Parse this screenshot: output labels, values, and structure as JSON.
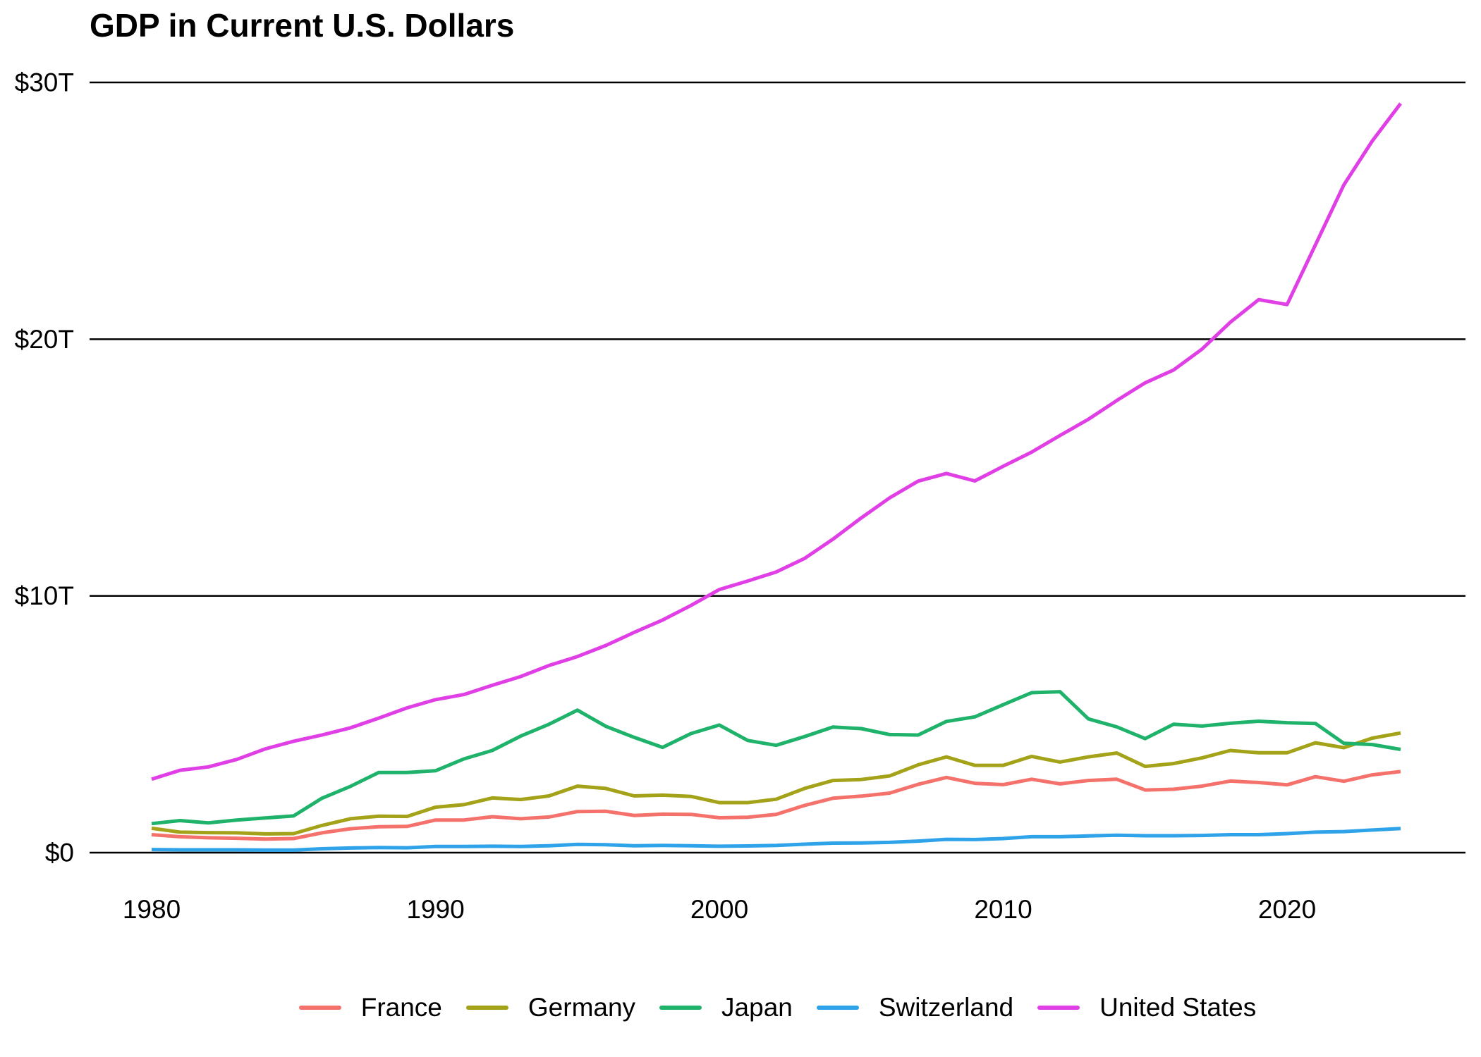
{
  "title": "GDP in Current U.S. Dollars",
  "chart_data": {
    "type": "line",
    "title": "GDP in Current U.S. Dollars",
    "units": "trillions of current U.S. dollars",
    "x_label": "",
    "y_label": "",
    "x": [
      1980,
      1981,
      1982,
      1983,
      1984,
      1985,
      1986,
      1987,
      1988,
      1989,
      1990,
      1991,
      1992,
      1993,
      1994,
      1995,
      1996,
      1997,
      1998,
      1999,
      2000,
      2001,
      2002,
      2003,
      2004,
      2005,
      2006,
      2007,
      2008,
      2009,
      2010,
      2011,
      2012,
      2013,
      2014,
      2015,
      2016,
      2017,
      2018,
      2019,
      2020,
      2021,
      2022,
      2023,
      2024
    ],
    "series": [
      {
        "name": "France",
        "color": "#F4726B",
        "values": [
          0.7,
          0.62,
          0.58,
          0.56,
          0.53,
          0.55,
          0.77,
          0.93,
          1.01,
          1.02,
          1.27,
          1.27,
          1.4,
          1.32,
          1.39,
          1.6,
          1.61,
          1.45,
          1.5,
          1.49,
          1.36,
          1.38,
          1.49,
          1.84,
          2.12,
          2.2,
          2.32,
          2.66,
          2.93,
          2.7,
          2.65,
          2.86,
          2.68,
          2.81,
          2.86,
          2.44,
          2.47,
          2.59,
          2.79,
          2.73,
          2.64,
          2.96,
          2.78,
          3.03,
          3.16
        ]
      },
      {
        "name": "Germany",
        "color": "#A3A218",
        "values": [
          0.95,
          0.8,
          0.78,
          0.77,
          0.73,
          0.74,
          1.06,
          1.32,
          1.42,
          1.41,
          1.77,
          1.87,
          2.13,
          2.07,
          2.21,
          2.59,
          2.5,
          2.21,
          2.24,
          2.19,
          1.95,
          1.95,
          2.08,
          2.5,
          2.81,
          2.85,
          2.99,
          3.42,
          3.73,
          3.4,
          3.4,
          3.75,
          3.53,
          3.73,
          3.88,
          3.36,
          3.47,
          3.69,
          3.98,
          3.89,
          3.89,
          4.28,
          4.09,
          4.46,
          4.66
        ]
      },
      {
        "name": "Japan",
        "color": "#1FB26B",
        "values": [
          1.13,
          1.25,
          1.16,
          1.27,
          1.35,
          1.43,
          2.12,
          2.58,
          3.12,
          3.12,
          3.19,
          3.65,
          3.98,
          4.54,
          5.0,
          5.55,
          4.92,
          4.49,
          4.1,
          4.64,
          4.97,
          4.37,
          4.18,
          4.52,
          4.89,
          4.83,
          4.6,
          4.58,
          5.11,
          5.29,
          5.76,
          6.23,
          6.27,
          5.21,
          4.9,
          4.44,
          5.0,
          4.93,
          5.04,
          5.12,
          5.06,
          5.03,
          4.26,
          4.21,
          4.02
        ]
      },
      {
        "name": "Switzerland",
        "color": "#2EA3E9",
        "values": [
          0.12,
          0.11,
          0.11,
          0.11,
          0.1,
          0.1,
          0.15,
          0.18,
          0.2,
          0.19,
          0.24,
          0.24,
          0.25,
          0.24,
          0.27,
          0.32,
          0.31,
          0.27,
          0.28,
          0.27,
          0.25,
          0.26,
          0.28,
          0.33,
          0.37,
          0.38,
          0.4,
          0.45,
          0.52,
          0.51,
          0.55,
          0.62,
          0.62,
          0.65,
          0.68,
          0.66,
          0.66,
          0.67,
          0.7,
          0.7,
          0.74,
          0.8,
          0.82,
          0.88,
          0.94
        ]
      },
      {
        "name": "United States",
        "color": "#E13FE6",
        "values": [
          2.86,
          3.21,
          3.34,
          3.63,
          4.04,
          4.34,
          4.58,
          4.86,
          5.24,
          5.64,
          5.96,
          6.16,
          6.52,
          6.86,
          7.29,
          7.64,
          8.07,
          8.58,
          9.06,
          9.63,
          10.25,
          10.58,
          10.93,
          11.46,
          12.21,
          13.04,
          13.82,
          14.47,
          14.77,
          14.48,
          15.05,
          15.6,
          16.25,
          16.88,
          17.61,
          18.3,
          18.8,
          19.61,
          20.66,
          21.54,
          21.35,
          23.68,
          26.01,
          27.72,
          29.18
        ]
      }
    ],
    "ylim": [
      0,
      30
    ],
    "yticks": [
      {
        "value": 0,
        "label": "$0"
      },
      {
        "value": 10,
        "label": "$10T"
      },
      {
        "value": 20,
        "label": "$20T"
      },
      {
        "value": 30,
        "label": "$30T"
      }
    ],
    "xticks": [
      {
        "value": 1980,
        "label": "1980"
      },
      {
        "value": 1990,
        "label": "1990"
      },
      {
        "value": 2000,
        "label": "2000"
      },
      {
        "value": 2010,
        "label": "2010"
      },
      {
        "value": 2020,
        "label": "2020"
      }
    ],
    "grid": "horizontal-only",
    "grid_color": "#000000",
    "text_color": "#000000",
    "background": "#FFFFFF",
    "legend_position": "bottom-center"
  }
}
